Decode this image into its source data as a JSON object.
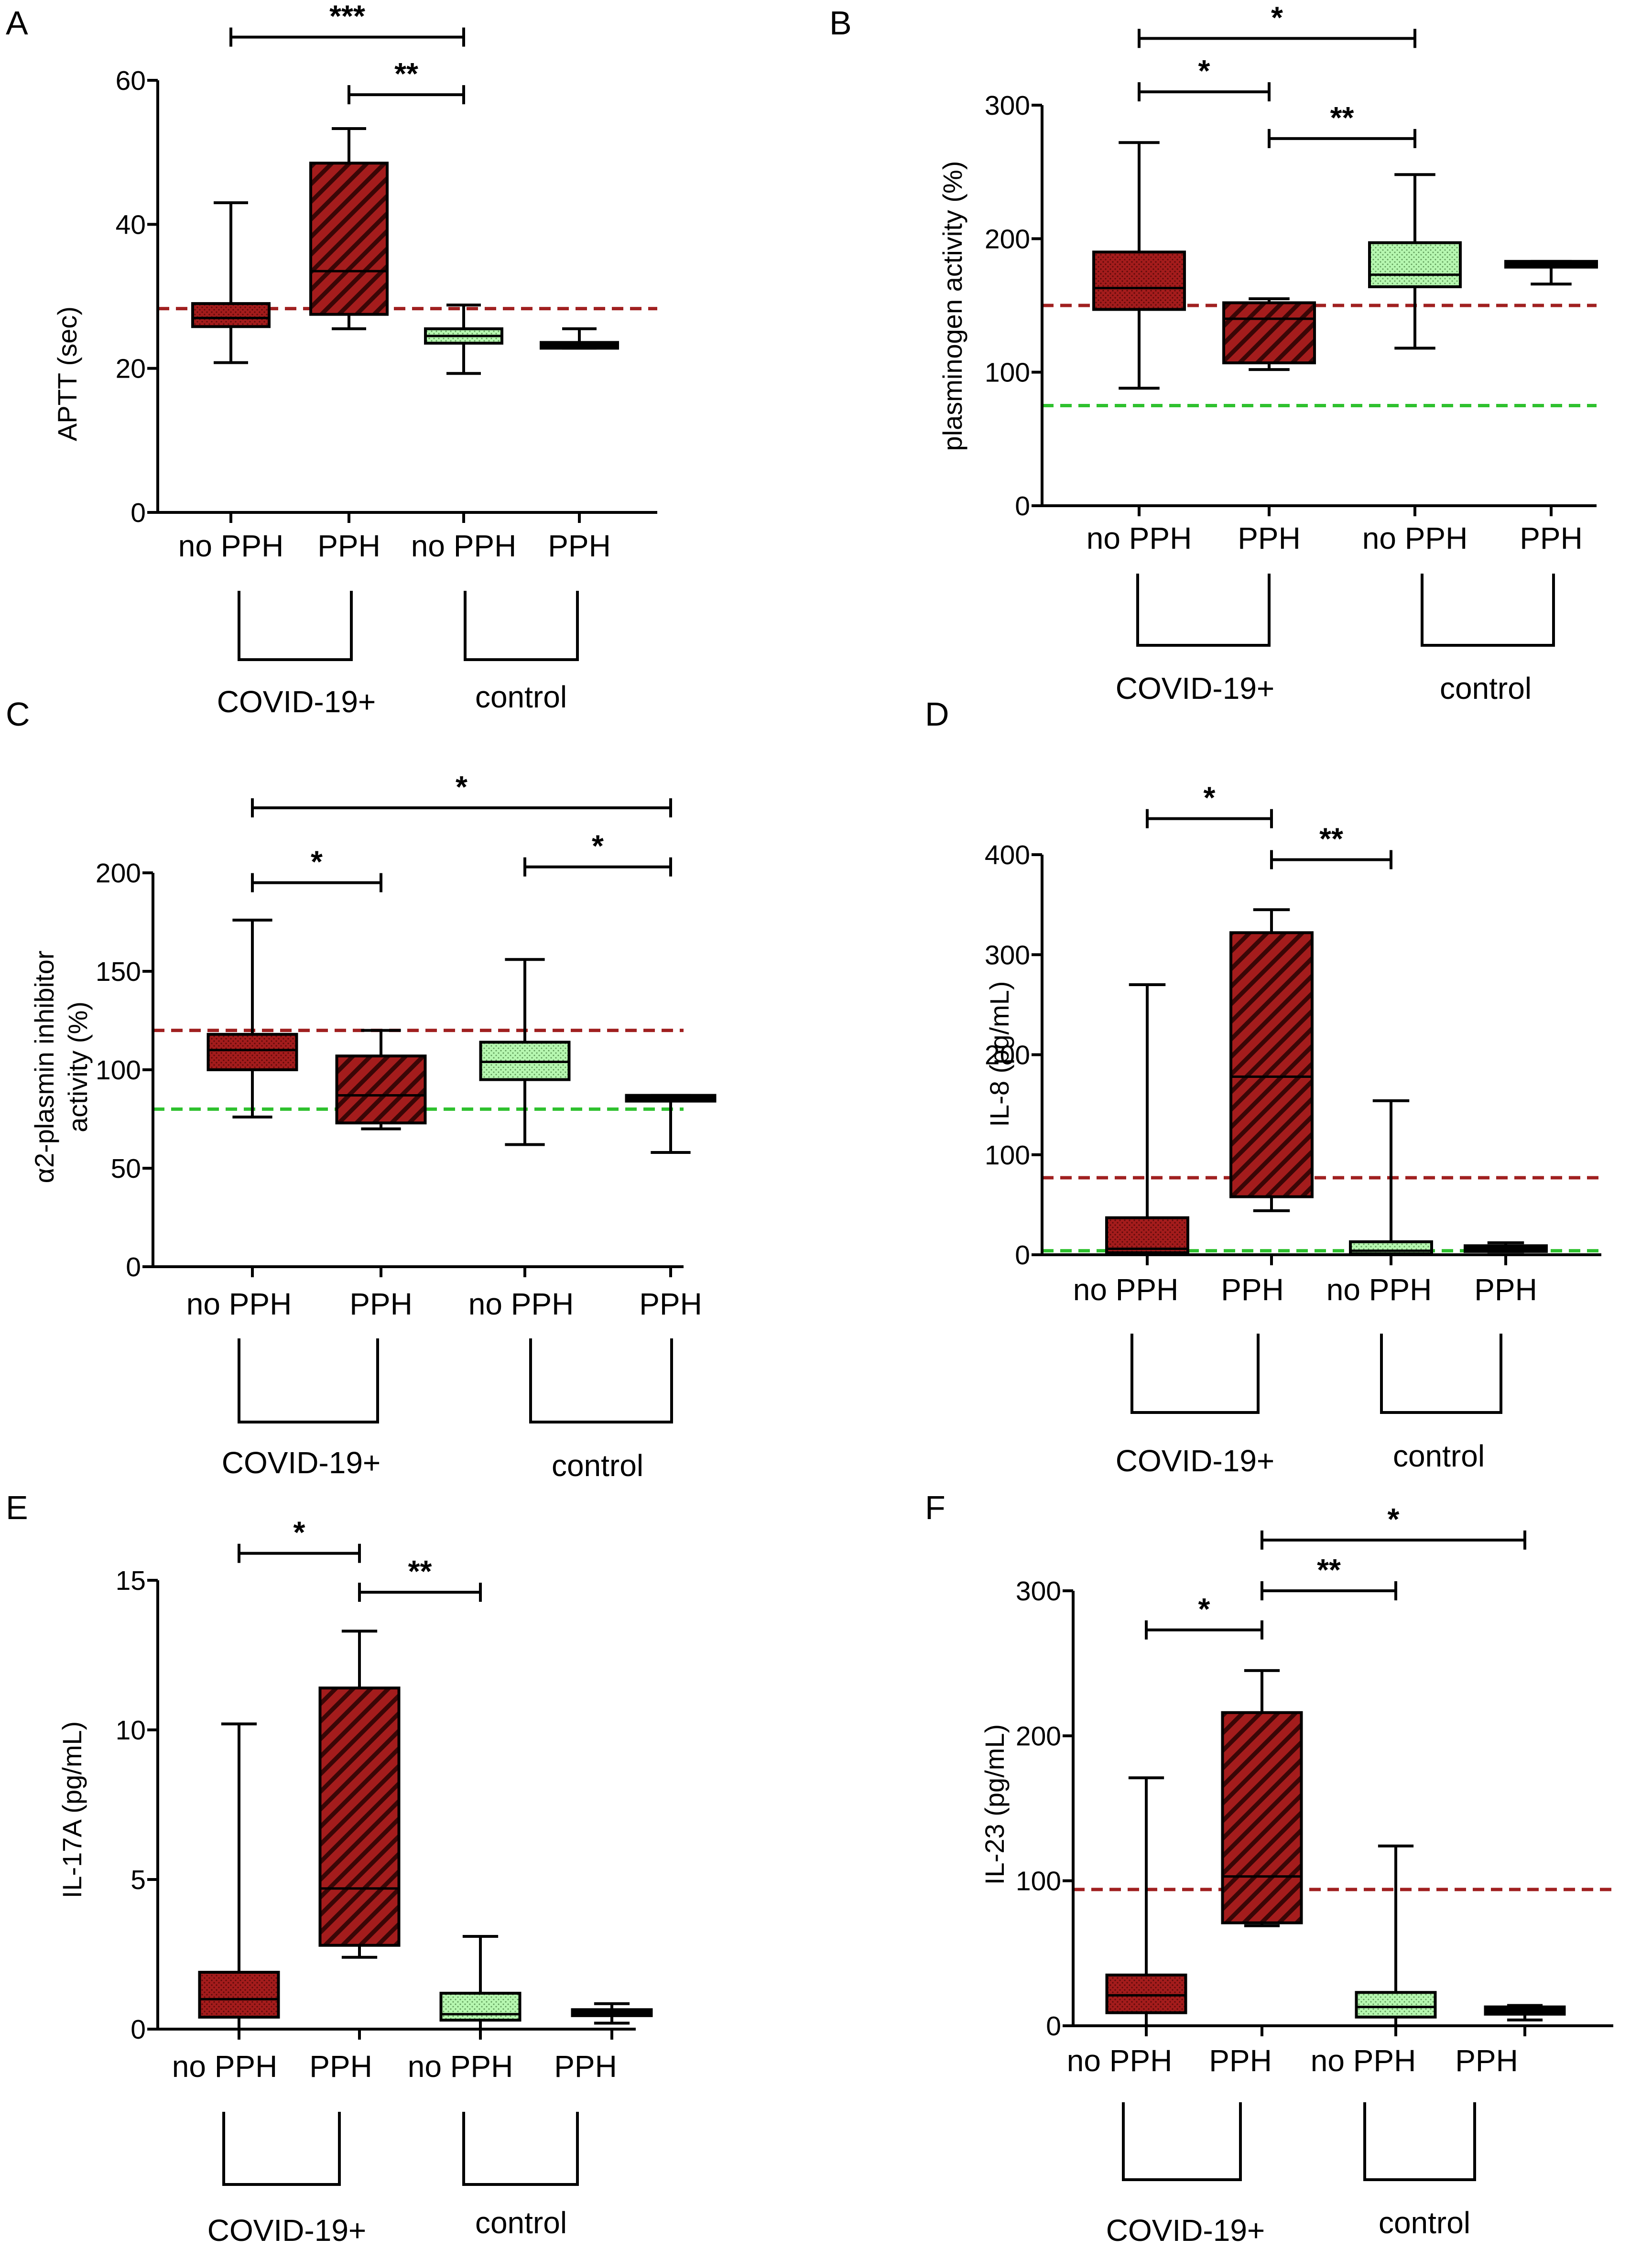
{
  "colors": {
    "covid_fill": "#a41c1c",
    "covid_hatch_line": "#3a0606",
    "control_fill": "#b6f7b0",
    "control_dot": "#5f9a59",
    "ref_red": "#a02020",
    "ref_green": "#2ec12e",
    "axis": "#000000"
  },
  "chart_data": [
    {
      "panel": "A",
      "type": "box",
      "ylabel": "APTT (sec)",
      "ylim": [
        0,
        60
      ],
      "yticks": [
        0,
        20,
        40,
        60
      ],
      "categories": [
        "no PPH",
        "PPH",
        "no PPH",
        "PPH"
      ],
      "groups": [
        "COVID-19+",
        "control"
      ],
      "boxes": [
        {
          "min": 20.8,
          "q1": 25.8,
          "median": 27.0,
          "q3": 29.0,
          "max": 43.0,
          "style": "covid-dot"
        },
        {
          "min": 25.5,
          "q1": 27.5,
          "median": 33.5,
          "q3": 48.5,
          "max": 53.3,
          "style": "covid-hatch"
        },
        {
          "min": 19.3,
          "q1": 23.5,
          "median": 24.5,
          "q3": 25.5,
          "max": 28.8,
          "style": "control-dot"
        },
        {
          "min": 22.8,
          "q1": 23.0,
          "median": 23.3,
          "q3": 23.6,
          "max": 25.5,
          "style": "control-thin"
        }
      ],
      "reference_lines": [
        {
          "value": 28.3,
          "color": "red"
        }
      ],
      "significance": [
        {
          "from": 0,
          "to": 2,
          "label": "***",
          "y": 66
        },
        {
          "from": 1,
          "to": 2,
          "label": "**",
          "y": 58
        }
      ]
    },
    {
      "panel": "B",
      "type": "box",
      "ylabel": "plasminogen activity (%)",
      "ylim": [
        0,
        300
      ],
      "yticks": [
        0,
        100,
        200,
        300
      ],
      "categories": [
        "no PPH",
        "PPH",
        "no PPH",
        "PPH"
      ],
      "groups": [
        "COVID-19+",
        "control"
      ],
      "boxes": [
        {
          "min": 88,
          "q1": 147,
          "median": 163,
          "q3": 190,
          "max": 272,
          "style": "covid-dot"
        },
        {
          "min": 102,
          "q1": 107,
          "median": 140,
          "q3": 152,
          "max": 155,
          "style": "covid-hatch"
        },
        {
          "min": 118,
          "q1": 164,
          "median": 173,
          "q3": 197,
          "max": 248,
          "style": "control-dot"
        },
        {
          "min": 166,
          "q1": 180,
          "median": 182,
          "q3": 183,
          "max": 183,
          "style": "control-thin"
        }
      ],
      "reference_lines": [
        {
          "value": 150,
          "color": "red"
        },
        {
          "value": 75,
          "color": "green"
        }
      ],
      "significance": [
        {
          "from": 0,
          "to": 2,
          "label": "*",
          "y": 350
        },
        {
          "from": 0,
          "to": 1,
          "label": "*",
          "y": 310
        },
        {
          "from": 1,
          "to": 2,
          "label": "**",
          "y": 275
        }
      ]
    },
    {
      "panel": "C",
      "type": "box",
      "ylabel": [
        "α2-plasmin inhibitor",
        "activity (%)"
      ],
      "ylim": [
        0,
        200
      ],
      "yticks": [
        0,
        50,
        100,
        150,
        200
      ],
      "categories": [
        "no PPH",
        "PPH",
        "no PPH",
        "PPH"
      ],
      "groups": [
        "COVID-19+",
        "control"
      ],
      "boxes": [
        {
          "min": 76,
          "q1": 100,
          "median": 110,
          "q3": 118,
          "max": 176,
          "style": "covid-dot"
        },
        {
          "min": 70,
          "q1": 73,
          "median": 87,
          "q3": 107,
          "max": 120,
          "style": "covid-hatch"
        },
        {
          "min": 62,
          "q1": 95,
          "median": 104,
          "q3": 114,
          "max": 156,
          "style": "control-dot"
        },
        {
          "min": 58,
          "q1": 85,
          "median": 86,
          "q3": 87,
          "max": 87,
          "style": "control-thin"
        }
      ],
      "reference_lines": [
        {
          "value": 120,
          "color": "red"
        },
        {
          "value": 80,
          "color": "green"
        }
      ],
      "significance": [
        {
          "from": 0,
          "to": 3,
          "label": "*",
          "y": 233
        },
        {
          "from": 0,
          "to": 1,
          "label": "*",
          "y": 195
        },
        {
          "from": 2,
          "to": 3,
          "label": "*",
          "y": 203
        }
      ]
    },
    {
      "panel": "D",
      "type": "box",
      "ylabel": "IL-8 (pg/mL)",
      "ylim": [
        0,
        400
      ],
      "yticks": [
        0,
        100,
        200,
        300,
        400
      ],
      "categories": [
        "no PPH",
        "PPH",
        "no PPH",
        "PPH"
      ],
      "groups": [
        "COVID-19+",
        "control"
      ],
      "boxes": [
        {
          "min": 0,
          "q1": 2,
          "median": 6,
          "q3": 37,
          "max": 270,
          "style": "covid-dot"
        },
        {
          "min": 44,
          "q1": 58,
          "median": 178,
          "q3": 322,
          "max": 345,
          "style": "covid-hatch"
        },
        {
          "min": 0,
          "q1": 1,
          "median": 4,
          "q3": 13,
          "max": 154,
          "style": "control-dot"
        },
        {
          "min": 3,
          "q1": 4,
          "median": 7,
          "q3": 9,
          "max": 12,
          "style": "control-thin"
        }
      ],
      "reference_lines": [
        {
          "value": 77,
          "color": "red"
        },
        {
          "value": 4,
          "color": "green"
        }
      ],
      "significance": [
        {
          "from": 0,
          "to": 1,
          "label": "*",
          "y": 436
        },
        {
          "from": 1,
          "to": 2,
          "label": "**",
          "y": 395
        }
      ]
    },
    {
      "panel": "E",
      "type": "box",
      "ylabel": "IL-17A (pg/mL)",
      "ylim": [
        0,
        15
      ],
      "yticks": [
        0,
        5,
        10,
        15
      ],
      "categories": [
        "no PPH",
        "PPH",
        "no PPH",
        "PPH"
      ],
      "groups": [
        "COVID-19+",
        "control"
      ],
      "boxes": [
        {
          "min": 0,
          "q1": 0.4,
          "median": 1.0,
          "q3": 1.9,
          "max": 10.2,
          "style": "covid-dot"
        },
        {
          "min": 2.4,
          "q1": 2.8,
          "median": 4.7,
          "q3": 11.4,
          "max": 13.3,
          "style": "covid-hatch"
        },
        {
          "min": 0,
          "q1": 0.3,
          "median": 0.5,
          "q3": 1.2,
          "max": 3.1,
          "style": "control-dot"
        },
        {
          "min": 0.2,
          "q1": 0.45,
          "median": 0.55,
          "q3": 0.65,
          "max": 0.85,
          "style": "control-thin"
        }
      ],
      "reference_lines": [],
      "significance": [
        {
          "from": 0,
          "to": 1,
          "label": "*",
          "y": 15.9
        },
        {
          "from": 1,
          "to": 2,
          "label": "**",
          "y": 14.6
        }
      ]
    },
    {
      "panel": "F",
      "type": "box",
      "ylabel": "IL-23 (pg/mL)",
      "ylim": [
        0,
        300
      ],
      "yticks": [
        0,
        100,
        200,
        300
      ],
      "categories": [
        "no PPH",
        "PPH",
        "no PPH",
        "PPH"
      ],
      "groups": [
        "COVID-19+",
        "control"
      ],
      "boxes": [
        {
          "min": 0,
          "q1": 9,
          "median": 21,
          "q3": 35,
          "max": 171,
          "style": "covid-dot"
        },
        {
          "min": 69,
          "q1": 71,
          "median": 103,
          "q3": 216,
          "max": 245,
          "style": "covid-hatch"
        },
        {
          "min": 0,
          "q1": 6,
          "median": 13,
          "q3": 23,
          "max": 124,
          "style": "control-dot"
        },
        {
          "min": 4,
          "q1": 8,
          "median": 10,
          "q3": 13,
          "max": 14,
          "style": "control-thin"
        }
      ],
      "reference_lines": [
        {
          "value": 94,
          "color": "red"
        }
      ],
      "significance": [
        {
          "from": 1,
          "to": 3,
          "label": "*",
          "y": 335
        },
        {
          "from": 0,
          "to": 1,
          "label": "*",
          "y": 273
        },
        {
          "from": 1,
          "to": 2,
          "label": "**",
          "y": 300
        }
      ]
    }
  ]
}
